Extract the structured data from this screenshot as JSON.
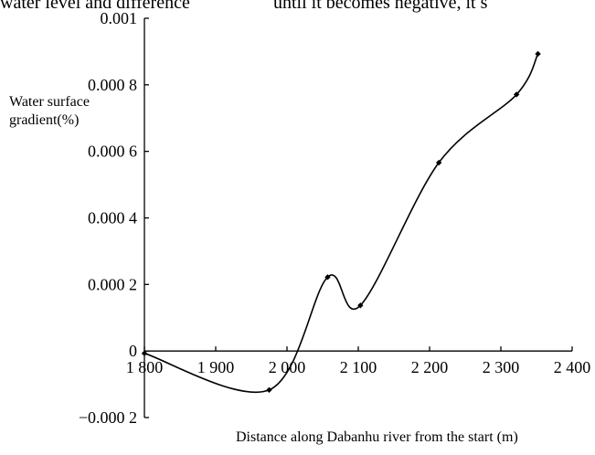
{
  "header_fragments": [
    "water level and difference",
    "until it becomes negative, it s"
  ],
  "chart_data": {
    "type": "line",
    "title": "",
    "ylabel": [
      "Water surface",
      "gradient(%)"
    ],
    "xlabel": "Distance along Dabanhu river from the start (m)",
    "x_ticks": [
      1800,
      1900,
      2000,
      2100,
      2200,
      2300,
      2400
    ],
    "x_tick_labels": [
      "1 800",
      "1 900",
      "2 000",
      "2 100",
      "2 200",
      "2 300",
      "2 400"
    ],
    "y_ticks": [
      -0.0002,
      0,
      0.0002,
      0.0004,
      0.0006,
      0.0008,
      0.001
    ],
    "y_tick_labels": [
      "−0.000 2",
      "0",
      "0.000 2",
      "0.000 4",
      "0.000 6",
      "0.000 8",
      "0.001"
    ],
    "xlim": [
      1800,
      2400
    ],
    "ylim": [
      -0.0002,
      0.001
    ],
    "grid": false,
    "line_color": "#000000",
    "series": [
      {
        "x": [
          1800,
          1975,
          2057,
          2103,
          2213,
          2322,
          2352
        ],
        "y": [
          -7e-06,
          -0.000117,
          0.000222,
          0.000137,
          0.000566,
          0.000771,
          0.000893
        ]
      }
    ]
  }
}
